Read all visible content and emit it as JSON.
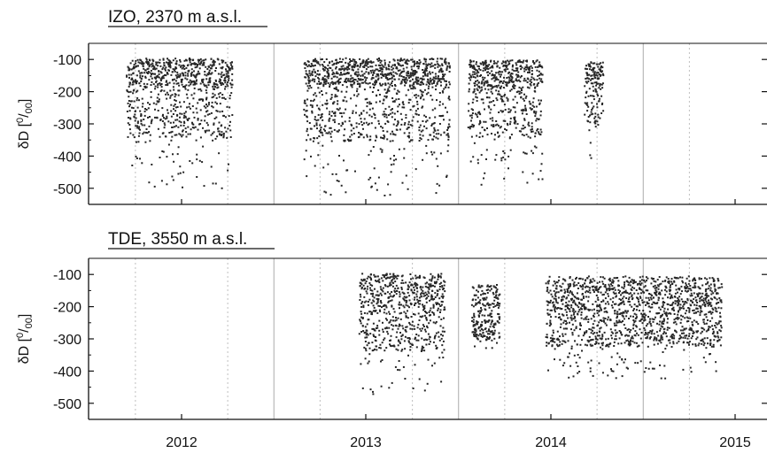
{
  "chart_data": [
    {
      "type": "scatter",
      "title": "IZO, 2370 m a.s.l.",
      "ylabel": {
        "prefix": "δD [",
        "sup": "0",
        "slash": "/",
        "sub": "00",
        "suffix": "]"
      },
      "ylim": [
        -550,
        -50
      ],
      "yticks": [
        -100,
        -200,
        -300,
        -400,
        -500
      ],
      "xticks": [
        "2012",
        "2013",
        "2014",
        "2015"
      ],
      "grid": {
        "minor": "dotted",
        "year_boundaries": "solid"
      },
      "marker_color": "#262626",
      "series": [
        {
          "start": 2011.7,
          "end": 2012.27,
          "top": -95,
          "base": -180,
          "low": -500
        },
        {
          "start": 2012.66,
          "end": 2013.45,
          "top": -95,
          "base": -180,
          "low": -520
        },
        {
          "start": 2013.55,
          "end": 2013.95,
          "top": -100,
          "base": -190,
          "low": -495
        },
        {
          "start": 2014.18,
          "end": 2014.28,
          "top": -105,
          "base": -180,
          "low": -410
        }
      ]
    },
    {
      "type": "scatter",
      "title": "TDE, 3550 m a.s.l.",
      "ylabel": {
        "prefix": "δD [",
        "sup": "0",
        "slash": "/",
        "sub": "00",
        "suffix": "]"
      },
      "ylim": [
        -550,
        -50
      ],
      "yticks": [
        -100,
        -200,
        -300,
        -400,
        -500
      ],
      "xticks": [
        "2012",
        "2013",
        "2014",
        "2015"
      ],
      "grid": {
        "minor": "dotted",
        "year_boundaries": "solid"
      },
      "marker_color": "#262626",
      "series": [
        {
          "start": 2012.96,
          "end": 2013.42,
          "top": -95,
          "base": -200,
          "low": -470
        },
        {
          "start": 2013.57,
          "end": 2013.72,
          "top": -130,
          "base": -240,
          "low": -360
        },
        {
          "start": 2013.97,
          "end": 2014.92,
          "top": -105,
          "base": -220,
          "low": -420
        }
      ]
    }
  ]
}
